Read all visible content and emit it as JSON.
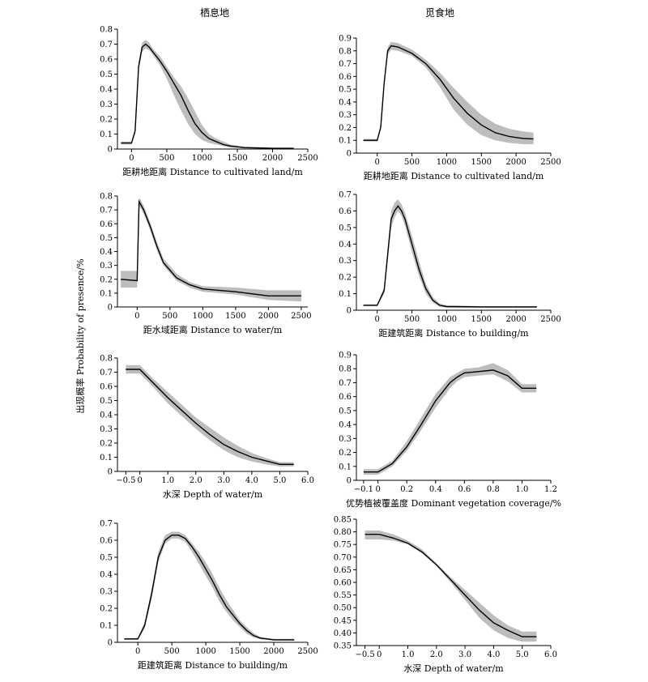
{
  "figure": {
    "column_titles": [
      "栖息地",
      "觅食地"
    ],
    "ylabel": "出现概率 Probability of presence/%"
  },
  "chart_data": [
    {
      "type": "line",
      "column": "栖息地",
      "xlabel": "距耕地距离 Distance to cultivated land/m",
      "xlim": [
        -200,
        2500
      ],
      "ylim": [
        0,
        0.8
      ],
      "xticks": [
        0,
        500,
        1000,
        1500,
        2000,
        2500
      ],
      "yticks": [
        0,
        0.1,
        0.2,
        0.3,
        0.4,
        0.5,
        0.6,
        0.7,
        0.8
      ],
      "xtick_labels": [
        "0",
        "500",
        "1000",
        "1500",
        "2000",
        "2500"
      ],
      "ytick_labels": [
        "0",
        "0.1",
        "0.2",
        "0.3",
        "0.4",
        "0.5",
        "0.6",
        "0.7",
        "0.8"
      ],
      "x": [
        -150,
        0,
        50,
        100,
        150,
        200,
        250,
        300,
        400,
        500,
        600,
        700,
        800,
        900,
        1000,
        1100,
        1200,
        1300,
        1400,
        1600,
        2000,
        2300
      ],
      "y": [
        0.04,
        0.04,
        0.12,
        0.55,
        0.68,
        0.7,
        0.68,
        0.65,
        0.59,
        0.52,
        0.44,
        0.36,
        0.26,
        0.17,
        0.11,
        0.07,
        0.05,
        0.03,
        0.02,
        0.01,
        0.005,
        0.005
      ],
      "lower": [
        0.03,
        0.03,
        0.1,
        0.52,
        0.65,
        0.67,
        0.66,
        0.63,
        0.56,
        0.47,
        0.36,
        0.26,
        0.17,
        0.1,
        0.06,
        0.04,
        0.03,
        0.02,
        0.01,
        0.005,
        0.0,
        0.0
      ],
      "upper": [
        0.05,
        0.05,
        0.14,
        0.58,
        0.71,
        0.73,
        0.71,
        0.67,
        0.62,
        0.55,
        0.48,
        0.42,
        0.34,
        0.25,
        0.16,
        0.1,
        0.07,
        0.05,
        0.03,
        0.015,
        0.008,
        0.008
      ]
    },
    {
      "type": "line",
      "column": "觅食地",
      "xlabel": "距耕地距离 Distance to cultivated land/m",
      "xlim": [
        -300,
        2500
      ],
      "ylim": [
        0,
        0.9
      ],
      "xticks": [
        0,
        500,
        1000,
        1500,
        2000,
        2500
      ],
      "yticks": [
        0,
        0.1,
        0.2,
        0.3,
        0.4,
        0.5,
        0.6,
        0.7,
        0.8,
        0.9
      ],
      "xtick_labels": [
        "0",
        "500",
        "1000",
        "1500",
        "2000",
        "2500"
      ],
      "ytick_labels": [
        "0",
        "0.1",
        "0.2",
        "0.3",
        "0.4",
        "0.5",
        "0.6",
        "0.7",
        "0.8",
        "0.9"
      ],
      "x": [
        -200,
        0,
        50,
        100,
        150,
        200,
        300,
        500,
        700,
        900,
        1100,
        1300,
        1500,
        1700,
        1900,
        2100,
        2250
      ],
      "y": [
        0.1,
        0.1,
        0.2,
        0.55,
        0.8,
        0.84,
        0.83,
        0.78,
        0.7,
        0.58,
        0.43,
        0.31,
        0.22,
        0.16,
        0.13,
        0.115,
        0.11
      ],
      "lower": [
        0.09,
        0.09,
        0.18,
        0.52,
        0.77,
        0.81,
        0.8,
        0.76,
        0.67,
        0.52,
        0.34,
        0.22,
        0.14,
        0.1,
        0.08,
        0.07,
        0.07
      ],
      "upper": [
        0.11,
        0.11,
        0.22,
        0.58,
        0.83,
        0.87,
        0.86,
        0.81,
        0.73,
        0.63,
        0.51,
        0.4,
        0.3,
        0.23,
        0.19,
        0.17,
        0.16
      ]
    },
    {
      "type": "line",
      "column": "栖息地",
      "xlabel": "距水域距离 Distance to water/m",
      "xlim": [
        -300,
        2600
      ],
      "ylim": [
        0,
        0.8
      ],
      "xticks": [
        0,
        500,
        1000,
        1500,
        2000,
        2500
      ],
      "yticks": [
        0,
        0.1,
        0.2,
        0.3,
        0.4,
        0.5,
        0.6,
        0.7,
        0.8
      ],
      "xtick_labels": [
        "0",
        "500",
        "1000",
        "1500",
        "2000",
        "2500"
      ],
      "ytick_labels": [
        "0",
        "0.1",
        "0.2",
        "0.3",
        "0.4",
        "0.5",
        "0.6",
        "0.7",
        "0.8"
      ],
      "x": [
        -250,
        0,
        30,
        100,
        200,
        300,
        400,
        600,
        800,
        1000,
        1500,
        2000,
        2500
      ],
      "y": [
        0.2,
        0.19,
        0.76,
        0.7,
        0.58,
        0.44,
        0.32,
        0.21,
        0.16,
        0.13,
        0.11,
        0.08,
        0.08
      ],
      "lower": [
        0.14,
        0.14,
        0.73,
        0.67,
        0.55,
        0.41,
        0.3,
        0.19,
        0.14,
        0.11,
        0.09,
        0.05,
        0.04
      ],
      "upper": [
        0.26,
        0.26,
        0.79,
        0.73,
        0.61,
        0.47,
        0.35,
        0.24,
        0.18,
        0.15,
        0.14,
        0.12,
        0.12
      ]
    },
    {
      "type": "line",
      "column": "觅食地",
      "xlabel": "距建筑距离 Distance to building/m",
      "xlim": [
        -300,
        2500
      ],
      "ylim": [
        0,
        0.7
      ],
      "xticks": [
        0,
        500,
        1000,
        1500,
        2000,
        2500
      ],
      "yticks": [
        0,
        0.1,
        0.2,
        0.3,
        0.4,
        0.5,
        0.6,
        0.7
      ],
      "xtick_labels": [
        "0",
        "500",
        "1000",
        "1500",
        "2000",
        "2500"
      ],
      "ytick_labels": [
        "0",
        "0.1",
        "0.2",
        "0.3",
        "0.4",
        "0.5",
        "0.6",
        "0.7"
      ],
      "x": [
        -200,
        0,
        100,
        200,
        250,
        300,
        350,
        400,
        500,
        600,
        700,
        800,
        900,
        1000,
        1500,
        2000,
        2300
      ],
      "y": [
        0.03,
        0.03,
        0.12,
        0.55,
        0.6,
        0.63,
        0.6,
        0.55,
        0.4,
        0.25,
        0.13,
        0.06,
        0.03,
        0.022,
        0.02,
        0.02,
        0.02
      ],
      "lower": [
        0.025,
        0.025,
        0.1,
        0.5,
        0.56,
        0.6,
        0.57,
        0.51,
        0.35,
        0.21,
        0.1,
        0.045,
        0.02,
        0.015,
        0.015,
        0.015,
        0.015
      ],
      "upper": [
        0.035,
        0.035,
        0.14,
        0.6,
        0.65,
        0.67,
        0.64,
        0.59,
        0.45,
        0.3,
        0.16,
        0.08,
        0.04,
        0.03,
        0.025,
        0.025,
        0.025
      ]
    },
    {
      "type": "line",
      "column": "栖息地",
      "xlabel": "水深 Depth of water/m",
      "xlim": [
        -0.8,
        6.0
      ],
      "ylim": [
        0,
        0.8
      ],
      "xticks": [
        -0.5,
        0,
        1.0,
        2.0,
        3.0,
        4.0,
        5.0,
        6.0
      ],
      "yticks": [
        0,
        0.1,
        0.2,
        0.3,
        0.4,
        0.5,
        0.6,
        0.7,
        0.8
      ],
      "xtick_labels": [
        "−0.5",
        "0",
        "1.0",
        "2.0",
        "3.0",
        "4.0",
        "5.0",
        "6.0"
      ],
      "ytick_labels": [
        "0",
        "0.1",
        "0.2",
        "0.3",
        "0.4",
        "0.5",
        "0.6",
        "0.7",
        "0.8"
      ],
      "x": [
        -0.5,
        0,
        0.5,
        1.0,
        1.5,
        2.0,
        2.5,
        3.0,
        3.5,
        4.0,
        4.5,
        5.0,
        5.5
      ],
      "y": [
        0.72,
        0.72,
        0.62,
        0.52,
        0.43,
        0.34,
        0.26,
        0.19,
        0.14,
        0.1,
        0.075,
        0.05,
        0.05
      ],
      "lower": [
        0.69,
        0.69,
        0.59,
        0.48,
        0.39,
        0.3,
        0.22,
        0.15,
        0.1,
        0.07,
        0.05,
        0.035,
        0.035
      ],
      "upper": [
        0.75,
        0.75,
        0.65,
        0.56,
        0.47,
        0.38,
        0.31,
        0.24,
        0.18,
        0.13,
        0.095,
        0.065,
        0.065
      ]
    },
    {
      "type": "line",
      "column": "觅食地",
      "xlabel": "优势植被覆盖度 Dominant vegetation coverage/%",
      "xlim": [
        -0.15,
        1.2
      ],
      "ylim": [
        0,
        0.9
      ],
      "xticks": [
        -0.1,
        0,
        0.2,
        0.4,
        0.6,
        0.8,
        1.0,
        1.2
      ],
      "yticks": [
        0,
        0.1,
        0.2,
        0.3,
        0.4,
        0.5,
        0.6,
        0.7,
        0.8,
        0.9
      ],
      "xtick_labels": [
        "−0.1",
        "0",
        "0.2",
        "0.4",
        "0.6",
        "0.8",
        "1.0",
        "1.2"
      ],
      "ytick_labels": [
        "0",
        "0.1",
        "0.2",
        "0.3",
        "0.4",
        "0.5",
        "0.6",
        "0.7",
        "0.8",
        "0.9"
      ],
      "x": [
        -0.1,
        0,
        0.1,
        0.2,
        0.3,
        0.4,
        0.5,
        0.55,
        0.6,
        0.7,
        0.8,
        0.9,
        1.0,
        1.1
      ],
      "y": [
        0.06,
        0.06,
        0.12,
        0.24,
        0.4,
        0.57,
        0.7,
        0.74,
        0.77,
        0.78,
        0.79,
        0.75,
        0.66,
        0.66
      ],
      "lower": [
        0.04,
        0.04,
        0.1,
        0.21,
        0.36,
        0.52,
        0.66,
        0.71,
        0.74,
        0.75,
        0.76,
        0.71,
        0.63,
        0.63
      ],
      "upper": [
        0.08,
        0.08,
        0.14,
        0.28,
        0.45,
        0.62,
        0.74,
        0.77,
        0.8,
        0.81,
        0.84,
        0.79,
        0.69,
        0.69
      ]
    },
    {
      "type": "line",
      "column": "栖息地",
      "xlabel": "距建筑距离 Distance to building/m",
      "xlim": [
        -300,
        2500
      ],
      "ylim": [
        0,
        0.7
      ],
      "xticks": [
        0,
        500,
        1000,
        1500,
        2000,
        2500
      ],
      "yticks": [
        0,
        0.1,
        0.2,
        0.3,
        0.4,
        0.5,
        0.6,
        0.7
      ],
      "xtick_labels": [
        "0",
        "500",
        "1000",
        "1500",
        "2000",
        "2500"
      ],
      "ytick_labels": [
        "0",
        "0.1",
        "0.2",
        "0.3",
        "0.4",
        "0.5",
        "0.6",
        "0.7"
      ],
      "x": [
        -200,
        0,
        100,
        200,
        300,
        400,
        500,
        600,
        700,
        800,
        900,
        1000,
        1100,
        1200,
        1300,
        1400,
        1500,
        1600,
        1700,
        1800,
        2000,
        2300
      ],
      "y": [
        0.02,
        0.02,
        0.1,
        0.28,
        0.5,
        0.6,
        0.63,
        0.63,
        0.61,
        0.56,
        0.5,
        0.43,
        0.36,
        0.28,
        0.21,
        0.16,
        0.11,
        0.07,
        0.04,
        0.025,
        0.015,
        0.015
      ],
      "lower": [
        0.015,
        0.015,
        0.08,
        0.25,
        0.47,
        0.58,
        0.61,
        0.61,
        0.59,
        0.53,
        0.46,
        0.39,
        0.32,
        0.24,
        0.18,
        0.13,
        0.09,
        0.05,
        0.03,
        0.018,
        0.01,
        0.01
      ],
      "upper": [
        0.025,
        0.025,
        0.12,
        0.31,
        0.53,
        0.63,
        0.65,
        0.65,
        0.63,
        0.58,
        0.53,
        0.47,
        0.4,
        0.32,
        0.25,
        0.19,
        0.13,
        0.09,
        0.055,
        0.032,
        0.02,
        0.02
      ]
    },
    {
      "type": "line",
      "column": "觅食地",
      "xlabel": "水深 Depth of water/m",
      "xlim": [
        -0.8,
        6.0
      ],
      "ylim": [
        0.35,
        0.85
      ],
      "xticks": [
        -0.5,
        0,
        1.0,
        2.0,
        3.0,
        4.0,
        5.0,
        6.0
      ],
      "yticks": [
        0.35,
        0.4,
        0.45,
        0.5,
        0.55,
        0.6,
        0.65,
        0.7,
        0.75,
        0.8,
        0.85
      ],
      "xtick_labels": [
        "−0.5",
        "0",
        "1.0",
        "2.0",
        "3.0",
        "4.0",
        "5.0",
        "6.0"
      ],
      "ytick_labels": [
        "0.35",
        "0.40",
        "0.45",
        "0.50",
        "0.55",
        "0.60",
        "0.65",
        "0.70",
        "0.75",
        "0.80",
        "0.85"
      ],
      "x": [
        -0.5,
        0,
        0.5,
        1.0,
        1.5,
        2.0,
        2.5,
        3.0,
        3.5,
        4.0,
        4.5,
        5.0,
        5.5
      ],
      "y": [
        0.79,
        0.79,
        0.775,
        0.755,
        0.72,
        0.67,
        0.61,
        0.55,
        0.49,
        0.44,
        0.41,
        0.385,
        0.385
      ],
      "lower": [
        0.77,
        0.77,
        0.765,
        0.75,
        0.715,
        0.665,
        0.6,
        0.53,
        0.46,
        0.41,
        0.38,
        0.365,
        0.365
      ],
      "upper": [
        0.805,
        0.805,
        0.79,
        0.765,
        0.73,
        0.675,
        0.62,
        0.57,
        0.52,
        0.47,
        0.43,
        0.405,
        0.405
      ]
    }
  ]
}
